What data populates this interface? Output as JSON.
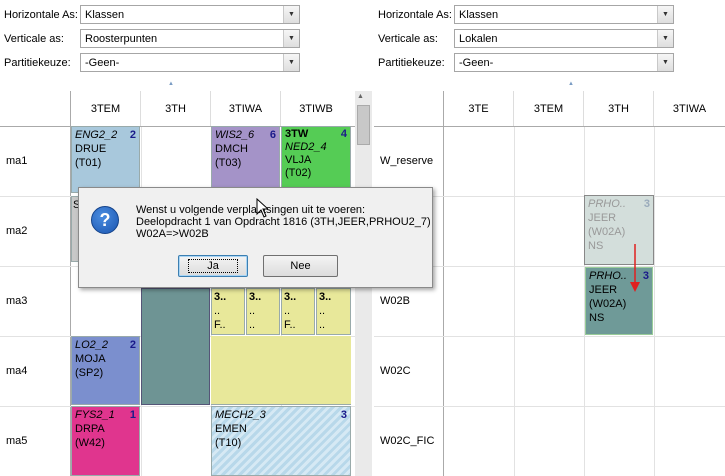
{
  "left_panel": {
    "filters": [
      {
        "label": "Horizontale As:",
        "value": "Klassen"
      },
      {
        "label": "Verticale as:",
        "value": "Roosterpunten"
      },
      {
        "label": "Partitiekeuze:",
        "value": "-Geen-"
      }
    ],
    "columns": [
      "3TEM",
      "3TH",
      "3TIWA",
      "3TIWB"
    ],
    "rows": [
      "ma1",
      "ma2",
      "ma3",
      "ma4",
      "ma5"
    ]
  },
  "right_panel": {
    "filters": [
      {
        "label": "Horizontale As:",
        "value": "Klassen"
      },
      {
        "label": "Verticale as:",
        "value": "Lokalen"
      },
      {
        "label": "Partitiekeuze:",
        "value": "-Geen-"
      }
    ],
    "columns": [
      "3TE",
      "3TEM",
      "3TH",
      "3TIWA"
    ],
    "rows": [
      "W_reserve",
      "",
      "W02B",
      "W02C",
      "W02C_FIC"
    ]
  },
  "lessons": {
    "eng": {
      "title": "ENG2_2",
      "num": "2",
      "teacher": "DRUE",
      "room": "(T01)"
    },
    "wis": {
      "title": "WIS2_6",
      "num": "6",
      "teacher": "DMCH",
      "room": "(T03)"
    },
    "tw": {
      "title": "3TW",
      "num": "4",
      "sub": "NED2_4",
      "teacher": "VLJA",
      "room": "(T02)"
    },
    "lo": {
      "title": "LO2_2",
      "num": "2",
      "teacher": "MOJA",
      "room": "(SP2)"
    },
    "fys": {
      "title": "FYS2_1",
      "num": "1",
      "teacher": "DRPA",
      "room": "(W42)"
    },
    "mech": {
      "title": "MECH2_3",
      "num": "3",
      "teacher": "EMEN",
      "room": "(T10)"
    },
    "small": [
      {
        "a": "3..",
        "b": "..",
        "c": "F..",
        "d": "(.."
      },
      {
        "a": "3..",
        "b": "..",
        "c": "..",
        "d": "(.."
      },
      {
        "a": "3..",
        "b": "..",
        "c": "F..",
        "d": "(.."
      },
      {
        "a": "3..",
        "b": "..",
        "c": "..",
        "d": "(.."
      }
    ],
    "ghost": {
      "title": "PRHO..",
      "num": "3",
      "teacher": "JEER",
      "room": "(W02A)",
      "extra": "NS"
    },
    "moved": {
      "title": "PRHO..",
      "num": "3",
      "teacher": "JEER",
      "room": "(W02A)",
      "extra": "NS"
    },
    "partial_s": "S"
  },
  "dialog": {
    "line1": "Wenst u volgende verplaatsingen uit te voeren:",
    "line2": "Deelopdracht 1 van Opdracht 1816 (3TH,JEER,PRHOU2_7)",
    "line3": "W02A=>W02B",
    "yes": "Ja",
    "no": "Nee",
    "icon": "question-icon"
  }
}
